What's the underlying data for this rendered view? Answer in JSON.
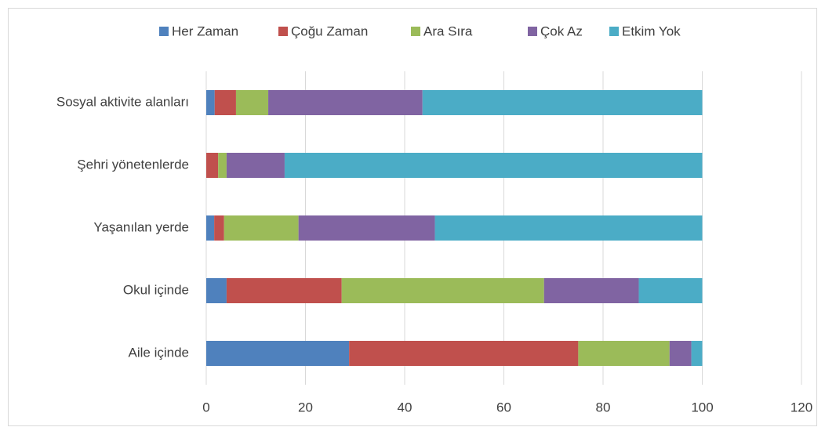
{
  "chart_data": {
    "type": "stacked_barh",
    "categories": [
      "Sosyal aktivite alanları",
      "Şehri yönetenlerde",
      "Yaşanılan yerde",
      "Okul içinde",
      "Aile içinde"
    ],
    "series": [
      {
        "name": "Her Zaman",
        "color": "#4f81bd",
        "values": [
          1.7,
          0,
          1.6,
          4.1,
          28.8
        ]
      },
      {
        "name": "Çoğu Zaman",
        "color": "#c0504d",
        "values": [
          4.3,
          2.4,
          2.0,
          23.2,
          46.2
        ]
      },
      {
        "name": "Ara Sıra",
        "color": "#9bbb59",
        "values": [
          6.5,
          1.7,
          15.0,
          40.8,
          18.4
        ]
      },
      {
        "name": "Çok Az",
        "color": "#8064a2",
        "values": [
          31.1,
          11.7,
          27.5,
          19.1,
          4.4
        ]
      },
      {
        "name": "Etkim Yok",
        "color": "#4bacc6",
        "values": [
          56.4,
          84.2,
          53.9,
          12.8,
          2.2
        ]
      }
    ],
    "xlim": [
      0,
      120
    ],
    "xticks": [
      0,
      20,
      40,
      60,
      80,
      100,
      120
    ],
    "grid": true,
    "legend": "top"
  }
}
